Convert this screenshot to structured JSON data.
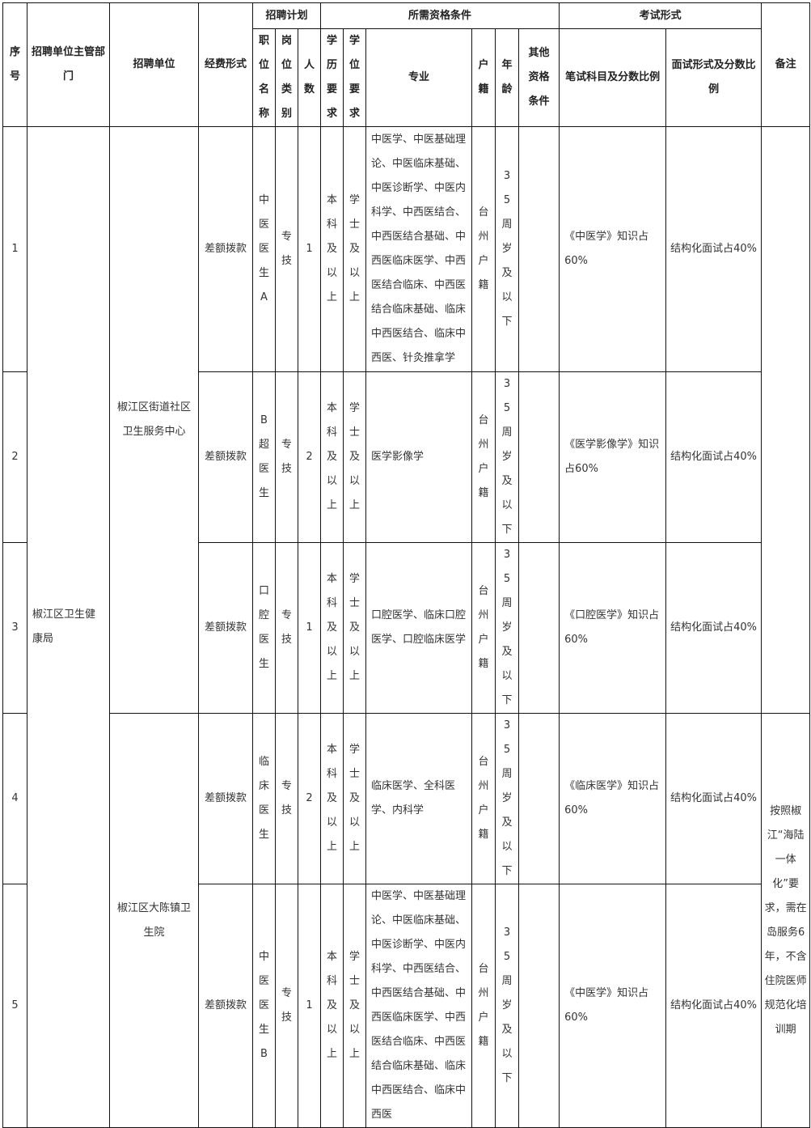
{
  "headers": {
    "seq": "序号",
    "dept": "招聘单位主管部门",
    "unit": "招聘单位",
    "funding": "经费形式",
    "plan": "招聘计划",
    "qual": "所需资格条件",
    "exam": "考试形式",
    "remark": "备注",
    "position": "职位名称",
    "post_type": "岗位类别",
    "count": "人数",
    "education": "学历要求",
    "degree": "学位要求",
    "major": "专业",
    "hukou": "户籍",
    "age": "年龄",
    "other": "其他资格条件",
    "written": "笔试科目及分数比例",
    "interview": "面试形式及分数比例"
  },
  "dept": "椒江区卫生健康局",
  "units": [
    "椒江区街道社区卫生服务中心",
    "椒江区大陈镇卫生院"
  ],
  "remarks": [
    "",
    "按照椒江“海陆一体化”要求，需在岛服务6年，不含住院医师规范化培训期"
  ],
  "rows": [
    {
      "seq": "1",
      "funding": "差额拨款",
      "position": "中医医生A",
      "post_type": "专技",
      "count": "1",
      "education": "本科及以上",
      "degree": "学士及以上",
      "major": "中医学、中医基础理论、中医临床基础、中医诊断学、中医内科学、中西医结合、中西医结合基础、中西医临床医学、中西医结合临床、中西医结合临床基础、临床中西医结合、临床中西医、针灸推拿学",
      "hukou": "台州户籍",
      "age": "35周岁及以下",
      "other": "",
      "written": "《中医学》知识占60%",
      "interview": "结构化面试占40%"
    },
    {
      "seq": "2",
      "funding": "差额拨款",
      "position": "B超医生",
      "post_type": "专技",
      "count": "2",
      "education": "本科及以上",
      "degree": "学士及以上",
      "major": "医学影像学",
      "hukou": "台州户籍",
      "age": "35周岁及以下",
      "other": "",
      "written": "《医学影像学》知识占60%",
      "interview": "结构化面试占40%"
    },
    {
      "seq": "3",
      "funding": "差额拨款",
      "position": "口腔医生",
      "post_type": "专技",
      "count": "1",
      "education": "本科及以上",
      "degree": "学士及以上",
      "major": "口腔医学、临床口腔医学、口腔临床医学",
      "hukou": "台州户籍",
      "age": "35周岁及以下",
      "other": "",
      "written": "《口腔医学》知识占60%",
      "interview": "结构化面试占40%"
    },
    {
      "seq": "4",
      "funding": "差额拨款",
      "position": "临床医生",
      "post_type": "专技",
      "count": "2",
      "education": "本科及以上",
      "degree": "学士及以上",
      "major": "临床医学、全科医学、内科学",
      "hukou": "台州户籍",
      "age": "35周岁及以下",
      "other": "",
      "written": "《临床医学》知识占60%",
      "interview": "结构化面试占40%"
    },
    {
      "seq": "5",
      "funding": "差额拨款",
      "position": "中医医生B",
      "post_type": "专技",
      "count": "1",
      "education": "本科及以上",
      "degree": "学士及以上",
      "major": "中医学、中医基础理论、中医临床基础、中医诊断学、中医内科学、中西医结合、中西医结合基础、中西医临床医学、中西医结合临床、中西医结合临床基础、临床中西医结合、临床中西医",
      "hukou": "台州户籍",
      "age": "35周岁及以下",
      "other": "",
      "written": "《中医学》知识占60%",
      "interview": "结构化面试占40%"
    }
  ]
}
